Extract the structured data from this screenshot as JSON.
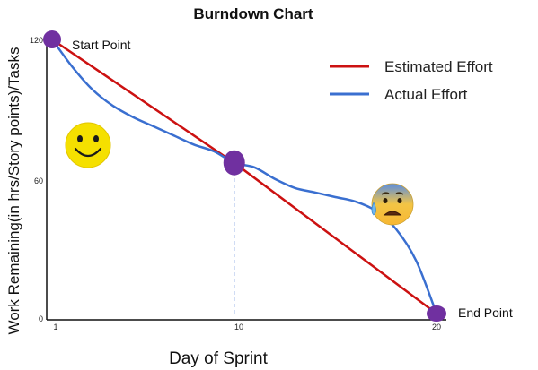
{
  "chart_data": {
    "type": "line",
    "title": "Burndown Chart",
    "xlabel": "Day of Sprint",
    "ylabel": "Work Remaining(in hrs/Story points)/Tasks",
    "x_ticks": [
      "1",
      "10",
      "20"
    ],
    "y_ticks": [
      "0",
      "60",
      "120"
    ],
    "xlim": [
      1,
      20
    ],
    "ylim": [
      0,
      120
    ],
    "grid": false,
    "legend": "top-right",
    "series": [
      {
        "name": "Estimated Effort",
        "color": "#cc1111",
        "x": [
          1,
          10,
          20
        ],
        "y": [
          120,
          66,
          0
        ]
      },
      {
        "name": "Actual Effort",
        "color": "#3a6fd0",
        "x": [
          1,
          2,
          3,
          4,
          5,
          6,
          7,
          8,
          9,
          10,
          11,
          12,
          13,
          14,
          15,
          16,
          17,
          18,
          19,
          20
        ],
        "y": [
          120,
          108,
          98,
          91,
          86,
          82,
          78,
          74,
          71,
          66,
          64,
          59,
          55,
          53,
          51,
          49,
          45,
          37,
          23,
          0
        ]
      }
    ],
    "key_points": [
      {
        "label": "Start Point",
        "x": 1,
        "y": 120,
        "color": "#7030a0"
      },
      {
        "label": "",
        "x": 10,
        "y": 66,
        "color": "#7030a0"
      },
      {
        "label": "End Point",
        "x": 20,
        "y": 0,
        "color": "#7030a0"
      }
    ],
    "markers": [
      {
        "name": "guide-line",
        "x": 10,
        "from_y": 0,
        "to_y": 66,
        "color": "#3a6fd0"
      }
    ],
    "icons": [
      "smiley-face-icon",
      "anxious-face-icon"
    ]
  }
}
